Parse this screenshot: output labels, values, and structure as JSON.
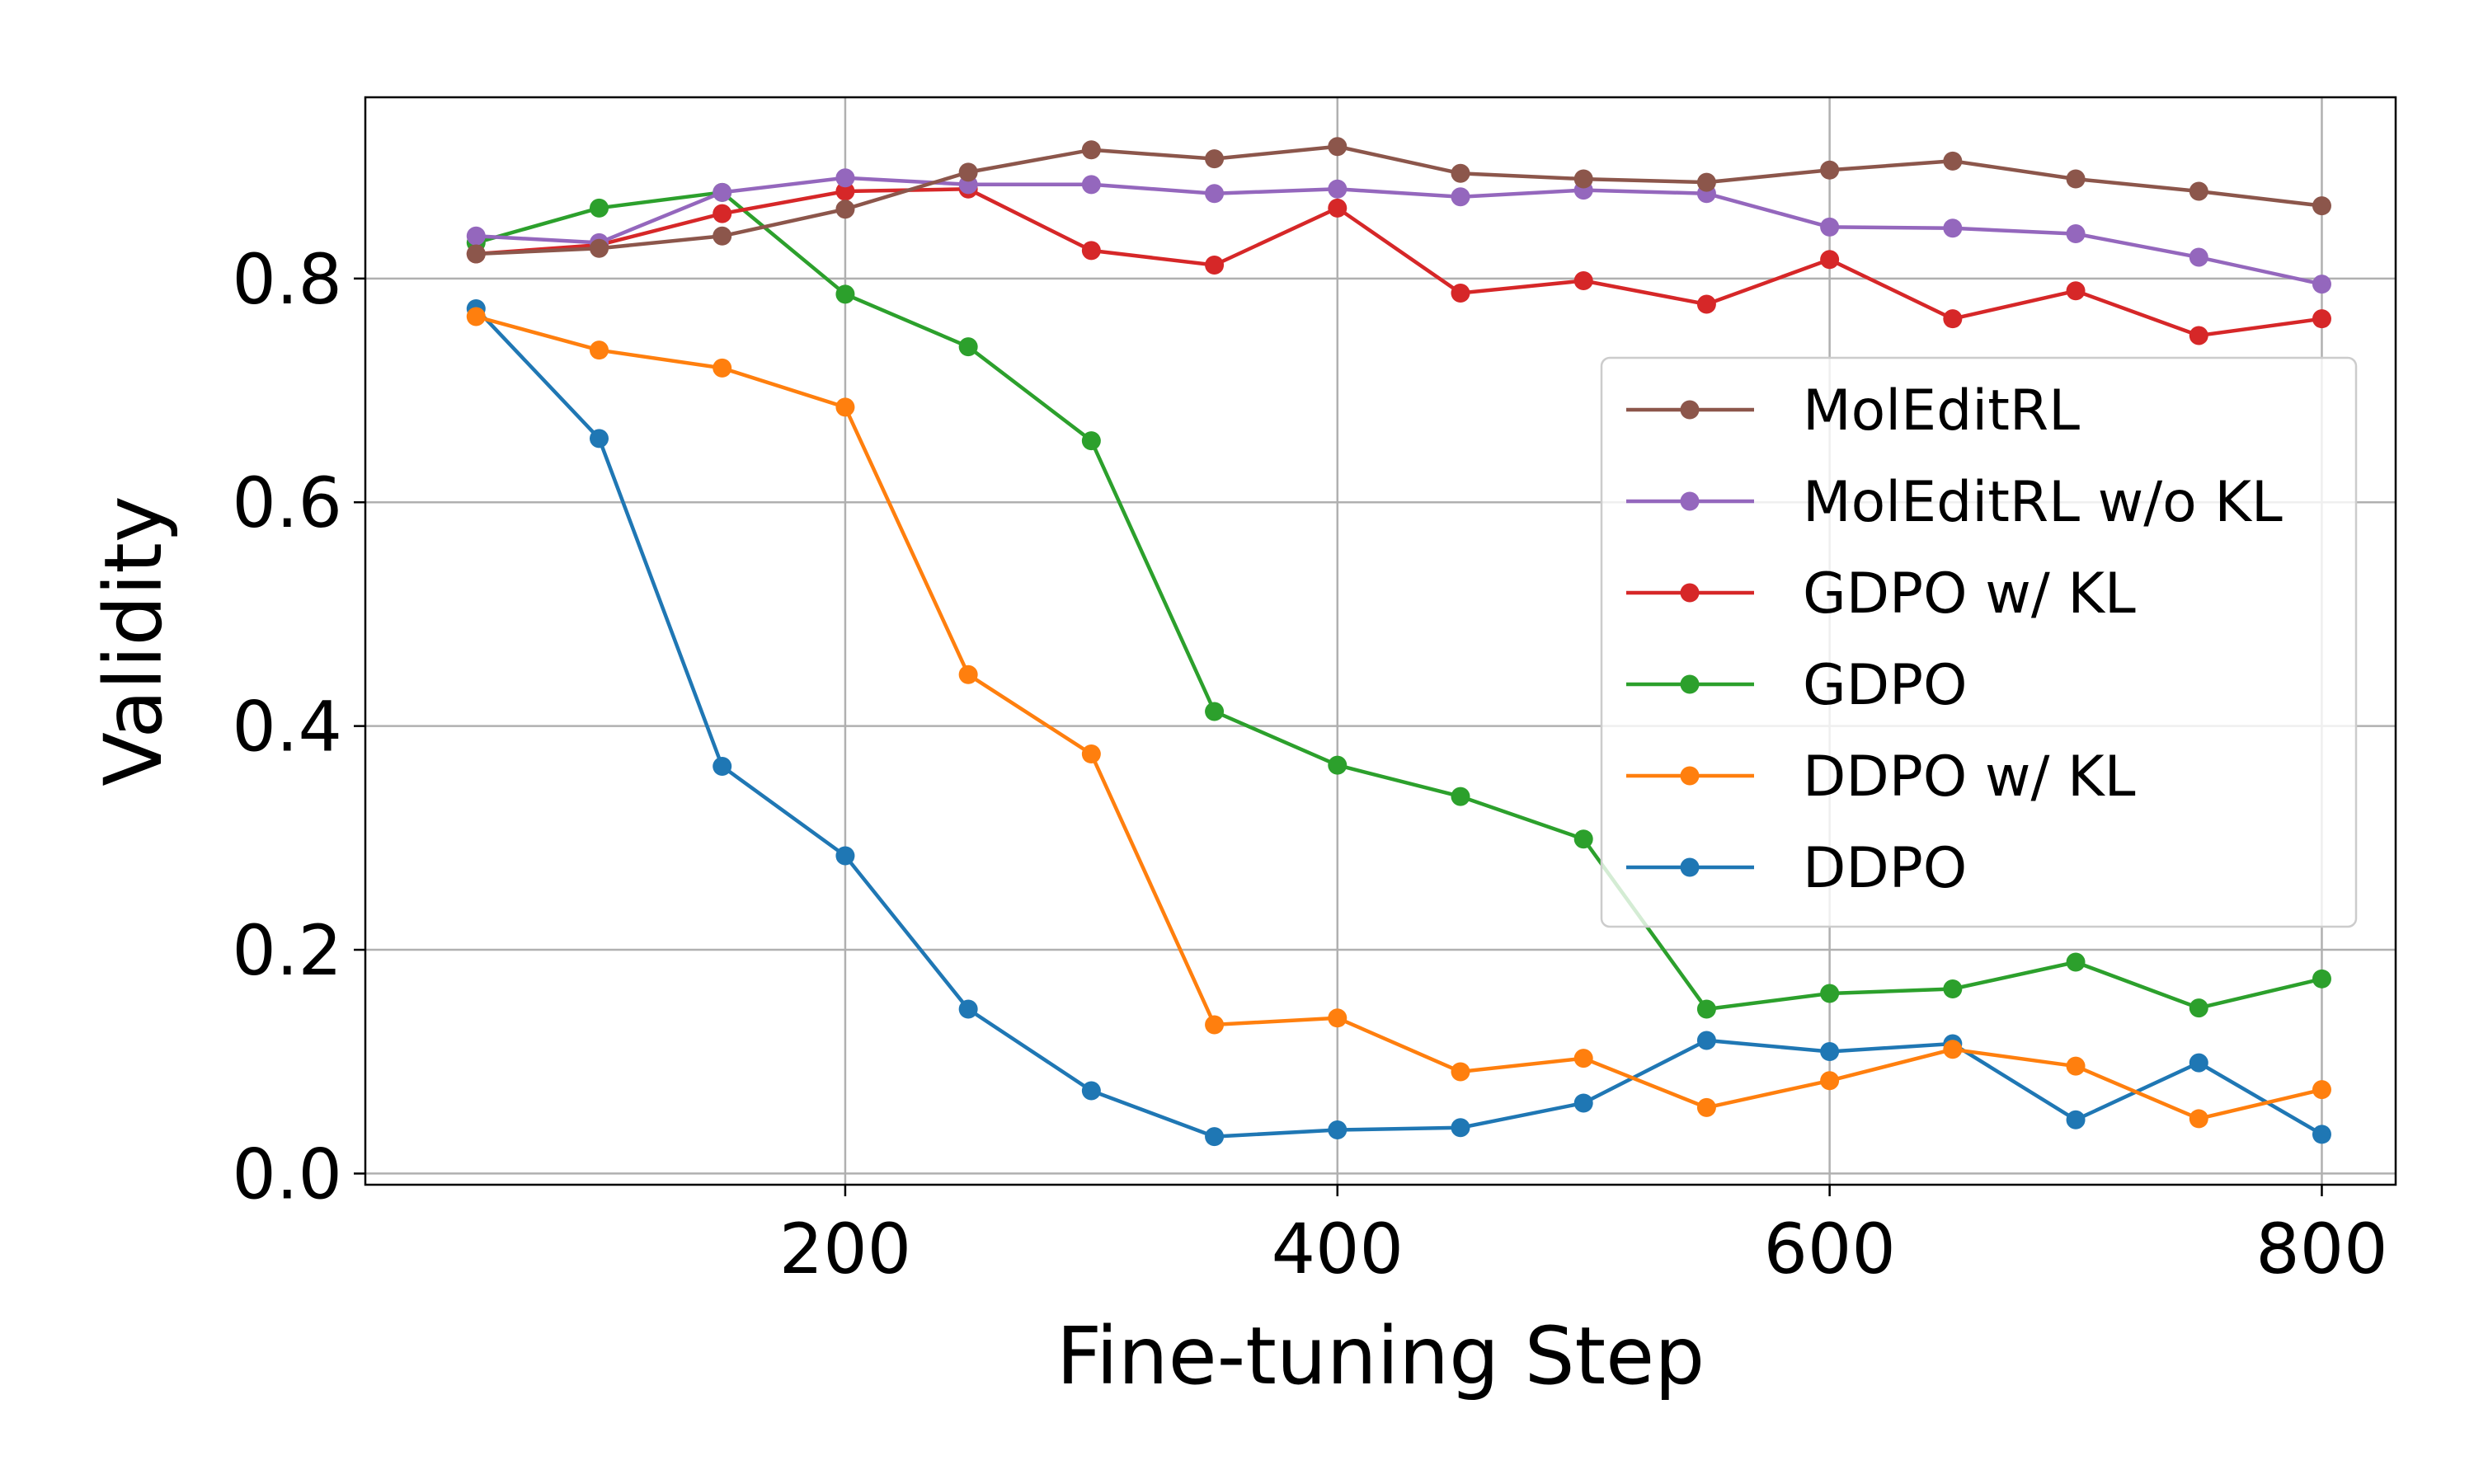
{
  "chart_data": {
    "type": "line",
    "title": "",
    "xlabel": "Fine-tuning Step",
    "ylabel": "Validity",
    "xlim": [
      5,
      830
    ],
    "ylim": [
      -0.01,
      0.962
    ],
    "xticks": [
      200,
      400,
      600,
      800
    ],
    "xtick_labels": [
      "200",
      "400",
      "600",
      "800"
    ],
    "yticks": [
      0.0,
      0.2,
      0.4,
      0.6,
      0.8
    ],
    "ytick_labels": [
      "0.0",
      "0.2",
      "0.4",
      "0.6",
      "0.8"
    ],
    "grid": true,
    "legend_position": "center-right",
    "x": [
      50,
      100,
      150,
      200,
      250,
      300,
      350,
      400,
      450,
      500,
      550,
      600,
      650,
      700,
      750,
      800
    ],
    "series": [
      {
        "name": "DDPO",
        "color": "#1f77b4",
        "values": [
          0.773,
          0.657,
          0.364,
          0.284,
          0.147,
          0.074,
          0.033,
          0.039,
          0.041,
          0.063,
          0.119,
          0.109,
          0.116,
          0.048,
          0.099,
          0.035
        ]
      },
      {
        "name": "DDPO w/ KL",
        "color": "#ff7f0e",
        "values": [
          0.766,
          0.736,
          0.72,
          0.685,
          0.446,
          0.375,
          0.133,
          0.139,
          0.091,
          0.103,
          0.059,
          0.083,
          0.111,
          0.096,
          0.049,
          0.075
        ]
      },
      {
        "name": "GDPO",
        "color": "#2ca02c",
        "values": [
          0.832,
          0.863,
          0.877,
          0.786,
          0.739,
          0.655,
          0.413,
          0.365,
          0.337,
          0.299,
          0.147,
          0.161,
          0.165,
          0.189,
          0.148,
          0.174
        ]
      },
      {
        "name": "GDPO w/ KL",
        "color": "#d62728",
        "values": [
          0.822,
          0.83,
          0.858,
          0.878,
          0.88,
          0.825,
          0.812,
          0.863,
          0.787,
          0.798,
          0.777,
          0.817,
          0.764,
          0.789,
          0.749,
          0.764
        ]
      },
      {
        "name": "MolEditRL w/o KL",
        "color": "#9467bd",
        "values": [
          0.838,
          0.832,
          0.877,
          0.89,
          0.884,
          0.884,
          0.876,
          0.88,
          0.873,
          0.879,
          0.876,
          0.846,
          0.845,
          0.84,
          0.819,
          0.795
        ]
      },
      {
        "name": "MolEditRL",
        "color": "#8c564b",
        "values": [
          0.822,
          0.827,
          0.838,
          0.862,
          0.895,
          0.915,
          0.907,
          0.918,
          0.894,
          0.889,
          0.886,
          0.897,
          0.905,
          0.889,
          0.878,
          0.865
        ]
      }
    ],
    "legend_order": [
      "MolEditRL",
      "MolEditRL w/o KL",
      "GDPO w/ KL",
      "GDPO",
      "DDPO w/ KL",
      "DDPO"
    ]
  }
}
